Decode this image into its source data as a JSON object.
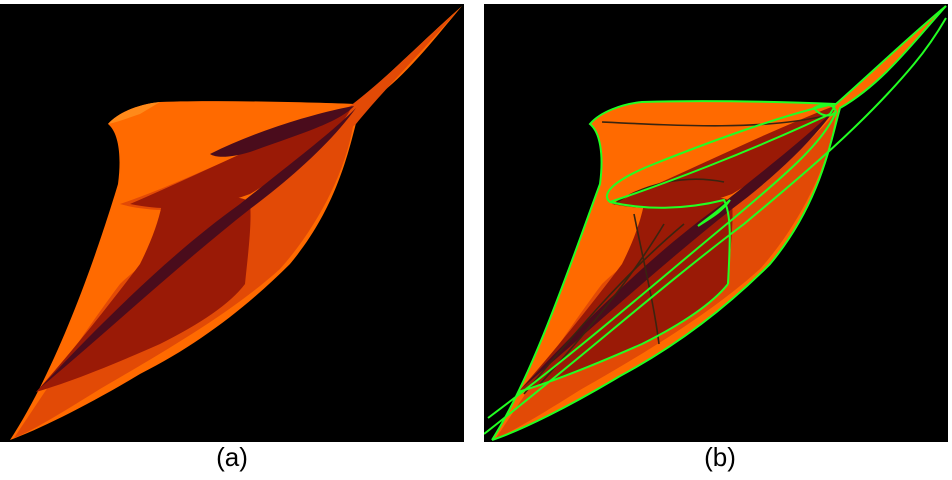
{
  "panels": [
    {
      "caption": "(a)",
      "outlined": false
    },
    {
      "caption": "(b)",
      "outlined": true
    }
  ],
  "colors": {
    "background": "#000000",
    "surface_light": "#ff6a00",
    "surface_mid": "#e24a06",
    "surface_dark": "#9a1a06",
    "surface_darkest": "#4a0c1c",
    "outline": "#22ff22",
    "inner_edge": "#3a2410"
  }
}
